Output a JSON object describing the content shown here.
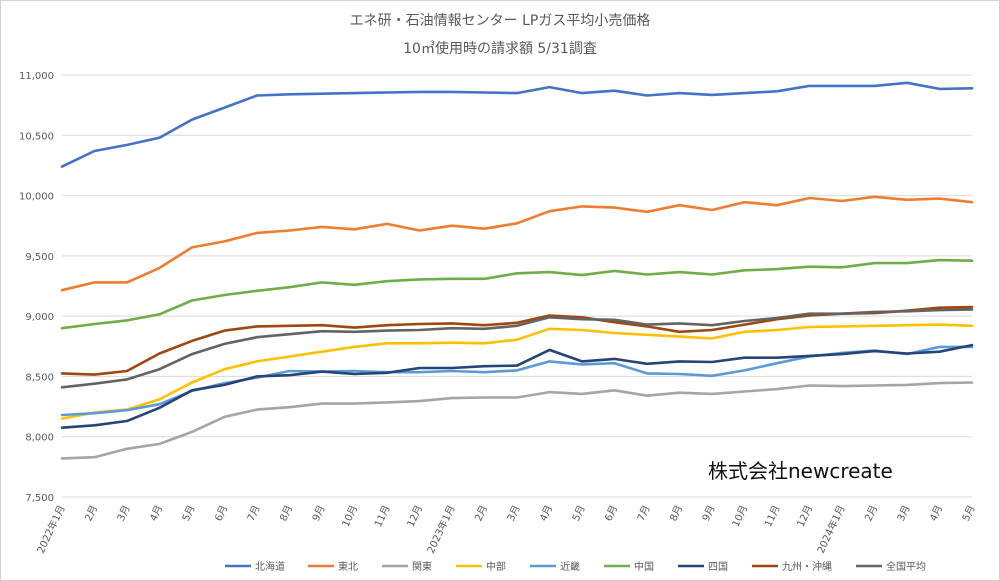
{
  "chart_data": {
    "type": "line",
    "title": "エネ研・石油情報センター LPガス平均小売価格",
    "subtitle": "10㎥使用時の請求額 5/31調査",
    "watermark": "株式会社newcreate",
    "categories": [
      "2022年1月",
      "2月",
      "3月",
      "4月",
      "5月",
      "6月",
      "7月",
      "8月",
      "9月",
      "10月",
      "11月",
      "12月",
      "2023年1月",
      "2月",
      "3月",
      "4月",
      "5月",
      "6月",
      "7月",
      "8月",
      "9月",
      "10月",
      "11月",
      "12月",
      "2024年1月",
      "2月",
      "3月",
      "4月",
      "5月"
    ],
    "ylim": [
      7500,
      11000
    ],
    "yticks": [
      7500,
      8000,
      8500,
      9000,
      9500,
      10000,
      10500,
      11000
    ],
    "ytick_labels": [
      "7,500",
      "8,000",
      "8,500",
      "9,000",
      "9,500",
      "10,000",
      "10,500",
      "11,000"
    ],
    "legend_position": "bottom",
    "grid": true,
    "series": [
      {
        "name": "北海道",
        "color": "#4472c4",
        "values": [
          10240,
          10370,
          10420,
          10480,
          10630,
          10730,
          10830,
          10840,
          10845,
          10850,
          10855,
          10860,
          10860,
          10855,
          10850,
          10900,
          10850,
          10870,
          10830,
          10850,
          10835,
          10850,
          10865,
          10910,
          10910,
          10910,
          10935,
          10885,
          10890
        ]
      },
      {
        "name": "東北",
        "color": "#ed7d31",
        "values": [
          9215,
          9280,
          9280,
          9400,
          9570,
          9620,
          9690,
          9710,
          9740,
          9720,
          9765,
          9710,
          9750,
          9725,
          9770,
          9870,
          9910,
          9900,
          9865,
          9920,
          9880,
          9945,
          9920,
          9980,
          9955,
          9990,
          9965,
          9975,
          9945
        ]
      },
      {
        "name": "関東",
        "color": "#a5a5a5",
        "values": [
          7820,
          7830,
          7900,
          7940,
          8040,
          8165,
          8225,
          8245,
          8275,
          8275,
          8285,
          8295,
          8320,
          8325,
          8325,
          8370,
          8355,
          8385,
          8340,
          8365,
          8355,
          8375,
          8395,
          8425,
          8420,
          8425,
          8430,
          8445,
          8450
        ]
      },
      {
        "name": "中部",
        "color": "#ffc000",
        "values": [
          8150,
          8200,
          8225,
          8310,
          8450,
          8560,
          8625,
          8665,
          8705,
          8745,
          8775,
          8775,
          8780,
          8775,
          8805,
          8895,
          8885,
          8860,
          8845,
          8830,
          8815,
          8870,
          8885,
          8910,
          8915,
          8920,
          8925,
          8930,
          8920
        ]
      },
      {
        "name": "近畿",
        "color": "#5b9bd5",
        "values": [
          8180,
          8195,
          8220,
          8270,
          8380,
          8445,
          8490,
          8545,
          8540,
          8545,
          8535,
          8535,
          8545,
          8535,
          8550,
          8625,
          8600,
          8610,
          8525,
          8520,
          8505,
          8550,
          8610,
          8665,
          8695,
          8715,
          8685,
          8745,
          8745
        ]
      },
      {
        "name": "中国",
        "color": "#70ad47",
        "values": [
          8900,
          8935,
          8965,
          9015,
          9130,
          9175,
          9210,
          9240,
          9280,
          9260,
          9290,
          9305,
          9310,
          9310,
          9355,
          9365,
          9340,
          9375,
          9345,
          9365,
          9345,
          9380,
          9390,
          9410,
          9405,
          9440,
          9440,
          9465,
          9460
        ]
      },
      {
        "name": "四国",
        "color": "#264478",
        "values": [
          8075,
          8095,
          8130,
          8240,
          8385,
          8430,
          8500,
          8510,
          8540,
          8520,
          8530,
          8570,
          8570,
          8585,
          8590,
          8720,
          8625,
          8645,
          8605,
          8625,
          8620,
          8655,
          8655,
          8670,
          8685,
          8710,
          8690,
          8705,
          8760
        ]
      },
      {
        "name": "九州・沖縄",
        "color": "#9e480e",
        "values": [
          8525,
          8515,
          8545,
          8690,
          8795,
          8880,
          8915,
          8920,
          8925,
          8905,
          8925,
          8935,
          8940,
          8925,
          8945,
          9005,
          8990,
          8950,
          8915,
          8870,
          8885,
          8930,
          8975,
          9005,
          9020,
          9025,
          9045,
          9070,
          9075
        ]
      },
      {
        "name": "全国平均",
        "color": "#636363",
        "values": [
          8410,
          8440,
          8475,
          8560,
          8685,
          8770,
          8825,
          8850,
          8875,
          8870,
          8880,
          8885,
          8900,
          8895,
          8920,
          8990,
          8975,
          8970,
          8930,
          8940,
          8925,
          8960,
          8985,
          9020,
          9020,
          9035,
          9040,
          9050,
          9055
        ]
      }
    ]
  }
}
